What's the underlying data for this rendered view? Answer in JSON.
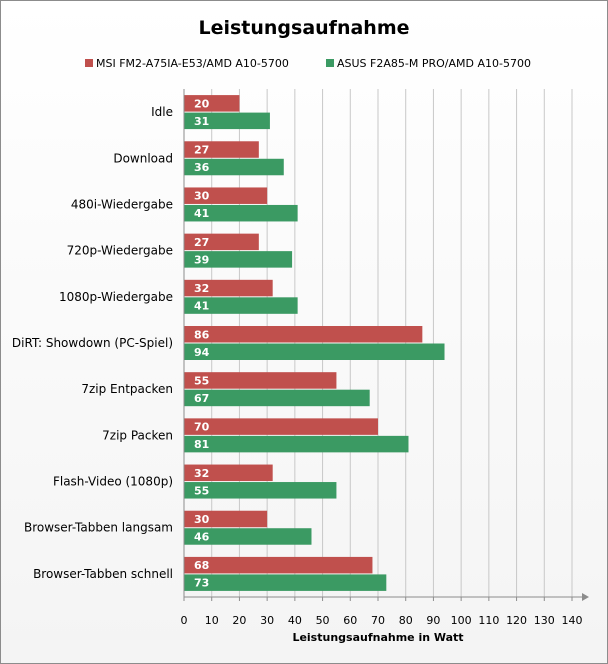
{
  "chart_data": {
    "type": "bar",
    "orientation": "horizontal",
    "title": "Leistungsaufnahme",
    "xlabel": "Leistungsaufnahme  in Watt",
    "ylabel": "",
    "xlim": [
      0,
      140
    ],
    "xticks": [
      0,
      10,
      20,
      30,
      40,
      50,
      60,
      70,
      80,
      90,
      100,
      110,
      120,
      130,
      140
    ],
    "grid": true,
    "legend_position": "top",
    "categories": [
      "Idle",
      "Download",
      "480i-Wiedergabe",
      "720p-Wiedergabe",
      "1080p-Wiedergabe",
      "DiRT: Showdown (PC-Spiel)",
      "7zip Entpacken",
      "7zip Packen",
      "Flash-Video (1080p)",
      "Browser-Tabben langsam",
      "Browser-Tabben schnell"
    ],
    "series": [
      {
        "name": "MSI FM2-A75IA-E53/AMD A10-5700",
        "color": "#c0504d",
        "values": [
          20,
          27,
          30,
          27,
          32,
          86,
          55,
          70,
          32,
          30,
          68
        ]
      },
      {
        "name": "ASUS F2A85-M PRO/AMD A10-5700",
        "color": "#3b9a63",
        "values": [
          31,
          36,
          41,
          39,
          41,
          94,
          67,
          81,
          55,
          46,
          73
        ]
      }
    ]
  }
}
